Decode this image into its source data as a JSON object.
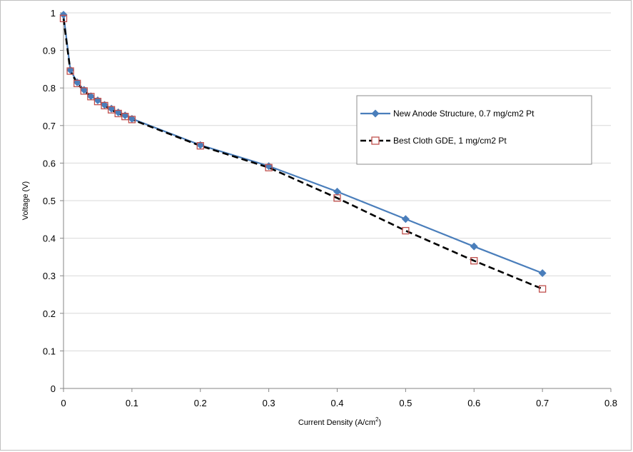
{
  "chart_data": {
    "type": "line",
    "title": "",
    "xlabel": "Current  Density (A/cm",
    "xlabel_sup": "2",
    "xlabel_suffix": ")",
    "ylabel": "Voltage (V)",
    "xlim": [
      0,
      0.8
    ],
    "ylim": [
      0,
      1
    ],
    "x_ticks": [
      "0",
      "0.1",
      "0.2",
      "0.3",
      "0.4",
      "0.5",
      "0.6",
      "0.7",
      "0.8"
    ],
    "y_ticks": [
      "0",
      "0.1",
      "0.2",
      "0.3",
      "0.4",
      "0.5",
      "0.6",
      "0.7",
      "0.8",
      "0.9",
      "1"
    ],
    "grid": "horizontal",
    "legend_position": "right",
    "series": [
      {
        "name": "New Anode Structure, 0.7 mg/cm2 Pt",
        "color": "#4a7ebb",
        "marker": "diamond",
        "line": "solid",
        "x": [
          0,
          0.01,
          0.02,
          0.03,
          0.04,
          0.05,
          0.06,
          0.07,
          0.08,
          0.09,
          0.1,
          0.2,
          0.3,
          0.4,
          0.5,
          0.6,
          0.7
        ],
        "y": [
          0.995,
          0.848,
          0.815,
          0.795,
          0.778,
          0.767,
          0.755,
          0.745,
          0.735,
          0.727,
          0.718,
          0.648,
          0.592,
          0.524,
          0.451,
          0.378,
          0.307
        ]
      },
      {
        "name": "Best Cloth GDE, 1 mg/cm2 Pt",
        "color": "#000000",
        "marker_color": "#c0504d",
        "marker": "square",
        "line": "dashed",
        "x": [
          0,
          0.01,
          0.02,
          0.03,
          0.04,
          0.05,
          0.06,
          0.07,
          0.08,
          0.09,
          0.1,
          0.2,
          0.3,
          0.4,
          0.5,
          0.6,
          0.7
        ],
        "y": [
          0.985,
          0.845,
          0.812,
          0.792,
          0.777,
          0.764,
          0.753,
          0.742,
          0.732,
          0.724,
          0.716,
          0.646,
          0.588,
          0.507,
          0.42,
          0.34,
          0.265
        ]
      }
    ]
  }
}
